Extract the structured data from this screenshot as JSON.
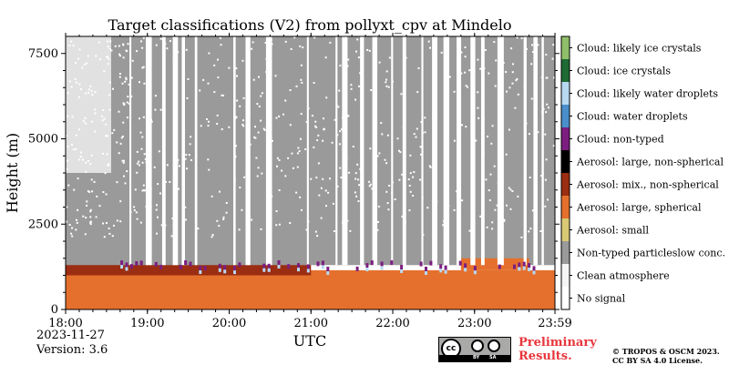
{
  "chart_data": {
    "type": "heatmap",
    "title": "Target classifications (V2) from pollyxt_cpv at Mindelo",
    "xlabel": "UTC",
    "ylabel": "Height (m)",
    "x_ticks": [
      "18:00",
      "19:00",
      "20:00",
      "21:00",
      "22:00",
      "23:00",
      "23:59"
    ],
    "x_range_hours": [
      18.0,
      23.983
    ],
    "y_ticks": [
      "0",
      "2500",
      "5000",
      "7500"
    ],
    "y_tick_values": [
      0,
      2500,
      5000,
      7500
    ],
    "ylim": [
      0,
      8000
    ],
    "classes": [
      {
        "label": "No signal",
        "color": "#ffffff"
      },
      {
        "label": "Clean atmosphere",
        "color": "#f5f5f5"
      },
      {
        "label": "Non-typed particleslow conc.",
        "color": "#9a9a9a"
      },
      {
        "label": "Aerosol: small",
        "color": "#d9c974"
      },
      {
        "label": "Aerosol: large, spherical",
        "color": "#e5702d"
      },
      {
        "label": "Aerosol: mix., non-spherical",
        "color": "#9b2d12"
      },
      {
        "label": "Aerosol: large, non-spherical",
        "color": "#000000"
      },
      {
        "label": "Cloud: non-typed",
        "color": "#7b1e80"
      },
      {
        "label": "Cloud: water droplets",
        "color": "#4a8fcc"
      },
      {
        "label": "Cloud: likely water droplets",
        "color": "#b7d9f2"
      },
      {
        "label": "Cloud: ice crystals",
        "color": "#1e6b34"
      },
      {
        "label": "Cloud: likely ice crystals",
        "color": "#8fbf6a"
      }
    ],
    "layers": [
      {
        "class": "Aerosol: large, spherical",
        "from_m": 0,
        "to_m": 1150,
        "time_range": [
          "18:00",
          "23:59"
        ]
      },
      {
        "class": "Aerosol: mix., non-spherical",
        "from_m": 1000,
        "to_m": 1400,
        "time_range": [
          "18:00",
          "21:00"
        ]
      },
      {
        "class": "Non-typed particleslow conc.",
        "from_m": 1300,
        "to_m": 8000,
        "time_range": [
          "18:00",
          "23:59"
        ]
      },
      {
        "class": "Aerosol: large, spherical",
        "from_m": 1150,
        "to_m": 1500,
        "time_range": [
          "22:50",
          "23:40"
        ]
      }
    ]
  },
  "footer": {
    "date": "2023-11-27",
    "version": "Version: 3.6",
    "preliminary_line1": "Preliminary",
    "preliminary_line2": "Results.",
    "copyright_line1": "© TROPOS & OSCM 2023.",
    "copyright_line2": "CC BY SA 4.0 License.",
    "cc_badge_main": "cc",
    "cc_badge_by": "BY",
    "cc_badge_sa": "SA"
  }
}
